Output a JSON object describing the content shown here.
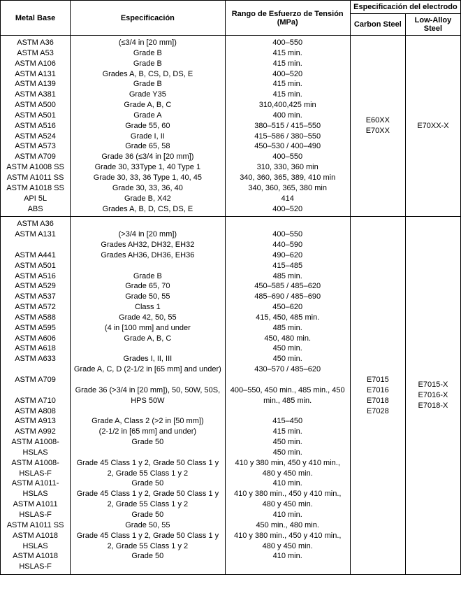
{
  "headers": {
    "metal": "Metal Base",
    "spec": "Especificación",
    "rango": "Rango de Esfuerzo de Tensión (MPa)",
    "elec": "Especificación del electrodo",
    "carbon": "Carbon Steel",
    "lowalloy": "Low-Alloy Steel"
  },
  "group1": {
    "metals": [
      "ASTM A36",
      "ASTM A53",
      "ASTM A106",
      "ASTM A131",
      "ASTM A139",
      "ASTM A381",
      "ASTM A500",
      "ASTM A501",
      "ASTM A516",
      "ASTM A524",
      "ASTM A573",
      "ASTM A709",
      "ASTM A1008 SS",
      "ASTM A1011 SS",
      "ASTM A1018 SS",
      "API 5L",
      "ABS"
    ],
    "specs": [
      "(≤3/4 in [20 mm])",
      "Grade B",
      "Grade B",
      "Grades A, B, CS, D, DS, E",
      "Grade B",
      "Grade Y35",
      "Grade A, B, C",
      "Grade A",
      "Grade 55, 60",
      "Grade I, II",
      "Grade 65, 58",
      "Grade 36 (≤3/4 in [20 mm])",
      "Grade 30, 33Type 1, 40 Type 1",
      "Grade 30, 33, 36 Type 1, 40, 45",
      "Grade 30, 33, 36, 40",
      "Grade B, X42",
      "Grades A, B, D, CS, DS, E"
    ],
    "rangos": [
      "400–550",
      "415 min.",
      "415 min.",
      "400–520",
      "415 min.",
      "415 min.",
      "310,400,425 min",
      "400 min.",
      "380–515 / 415–550",
      "415–586 / 380–550",
      "450–530 / 400–490",
      "400–550",
      "310, 330, 360 min",
      "340, 360, 365, 389, 410 min",
      "340, 360, 365, 380 min",
      "414",
      "400–520"
    ],
    "carbon": [
      "E60XX",
      "E70XX"
    ],
    "lowalloy": [
      "E70XX-X"
    ]
  },
  "group2": {
    "metals": [
      "ASTM A36",
      "ASTM A131",
      "",
      "ASTM A441",
      "ASTM A501",
      "ASTM A516",
      "ASTM A529",
      "ASTM A537",
      "ASTM A572",
      "ASTM A588",
      "ASTM A595",
      "ASTM A606",
      "ASTM A618",
      "ASTM A633",
      "",
      "ASTM A709",
      "",
      "ASTM A710",
      "ASTM A808",
      "ASTM A913",
      "ASTM A992",
      "ASTM A1008-HSLAS",
      "ASTM A1008-HSLAS-F",
      "ASTM A1011-HSLAS",
      "ASTM A1011 HSLAS-F",
      "ASTM A1011 SS",
      "ASTM A1018 HSLAS",
      "ASTM A1018 HSLAS-F"
    ],
    "specs": [
      "(>3/4 in [20 mm])",
      "Grades AH32, DH32, EH32",
      "Grades AH36, DH36, EH36",
      "",
      "Grade B",
      "Grade 65, 70",
      "Grade 50, 55",
      "Class 1",
      "Grade 42, 50, 55",
      "(4 in [100 mm] and under",
      "Grade A, B, C",
      "",
      "Grades I, II, III",
      "Grade A, C, D (2-1/2 in [65 mm] and under)",
      "",
      "Grade 36 (>3/4 in [20 mm]), 50, 50W, 50S, HPS 50W",
      "",
      "Grade A, Class 2 (>2 in [50 mm])",
      "(2-1/2 in [65 mm] and under)",
      "Grade 50",
      "",
      "Grade 45 Class 1 y 2, Grade 50 Class 1 y 2, Grade 55 Class 1 y 2",
      "Grade 50",
      "Grade 45 Class 1 y 2, Grade 50 Class 1 y 2, Grade 55 Class 1 y 2",
      "Grade 50",
      "Grade 50, 55",
      "Grade 45 Class 1 y 2, Grade 50 Class 1 y 2, Grade 55 Class 1 y 2",
      "Grade 50"
    ],
    "rangos": [
      "400–550",
      "440–590",
      "490–620",
      "415–485",
      "485 min.",
      "450–585 / 485–620",
      "485–690 / 485–690",
      "450–620",
      "415, 450, 485 min.",
      "485 min.",
      "450, 480 min.",
      "450 min.",
      "450 min.",
      "430–570 / 485–620",
      "",
      "400–550, 450 min., 485 min., 450 min., 485 min.",
      "",
      "415–450",
      "415 min.",
      "450 min.",
      "450 min.",
      "410 y 380 min, 450 y 410 min., 480 y 450 min.",
      "410 min.",
      "410 y 380 min., 450 y 410 min., 480 y 450 min.",
      "410 min.",
      "450 min., 480 min.",
      "410 y 380 min., 450 y 410 min., 480 y 450 min.",
      "410 min."
    ],
    "carbon": [
      "E7015",
      "E7016",
      "E7018",
      "E7028"
    ],
    "lowalloy": [
      "E7015-X",
      "E7016-X",
      "E7018-X"
    ]
  }
}
